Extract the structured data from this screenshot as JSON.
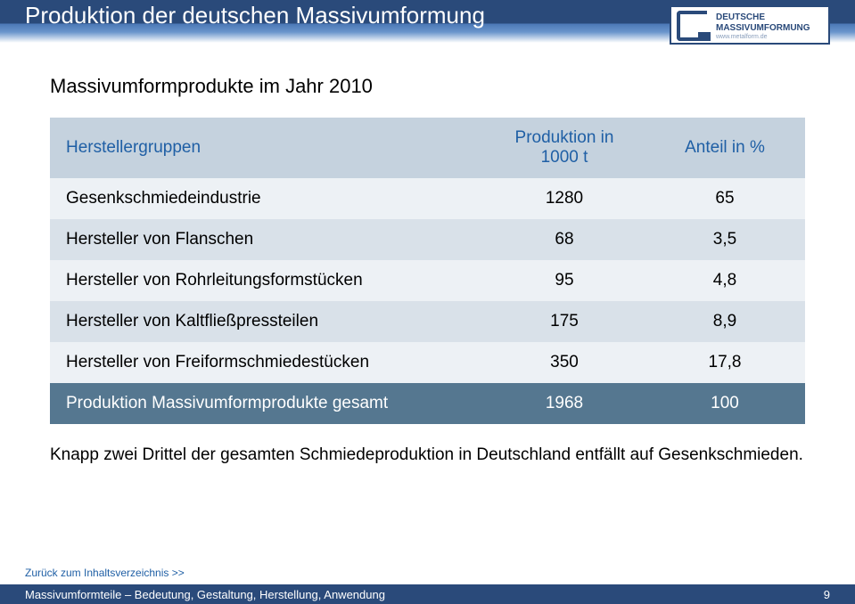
{
  "header": {
    "title": "Produktion der deutschen Massivumformung",
    "logo_line1": "DEUTSCHE",
    "logo_line2": "MASSIVUMFORMUNG",
    "logo_sub": "www.metalform.de"
  },
  "subtitle": "Massivumformprodukte im Jahr 2010",
  "colors": {
    "header_dark": "#2a4a7a",
    "header_text": "#ffffff",
    "row_head_bg": "#c5d2de",
    "row_head_text": "#1f5fa5",
    "row_light_bg": "#edf1f5",
    "row_mid_bg": "#d9e1e9",
    "row_total_bg": "#557790",
    "row_total_text": "#ffffff",
    "body_text": "#000000",
    "link": "#1f5fa5"
  },
  "table": {
    "columns": [
      "Herstellergruppen",
      "Produktion in 1000 t",
      "Anteil in %"
    ],
    "col_align": [
      "left",
      "center",
      "center"
    ],
    "font_size": 19,
    "rows": [
      {
        "cells": [
          "Gesenkschmiedeindustrie",
          "1280",
          "65"
        ],
        "style": "light"
      },
      {
        "cells": [
          "Hersteller von Flanschen",
          "68",
          "3,5"
        ],
        "style": "mid"
      },
      {
        "cells": [
          "Hersteller von Rohrleitungsformstücken",
          "95",
          "4,8"
        ],
        "style": "light"
      },
      {
        "cells": [
          "Hersteller von Kaltfließpressteilen",
          "175",
          "8,9"
        ],
        "style": "mid"
      },
      {
        "cells": [
          "Hersteller von Freiformschmiedestücken",
          "350",
          "17,8"
        ],
        "style": "light"
      },
      {
        "cells": [
          "Produktion Massivumformprodukte gesamt",
          "1968",
          "100"
        ],
        "style": "total"
      }
    ]
  },
  "note": "Knapp zwei Drittel der gesamten Schmiedeproduktion in Deutschland entfällt auf Gesenkschmieden.",
  "footer": {
    "back_link": "Zurück zum Inhaltsverzeichnis >>",
    "bar_text": "Massivumformteile – Bedeutung, Gestaltung, Herstellung, Anwendung",
    "page_number": "9"
  }
}
